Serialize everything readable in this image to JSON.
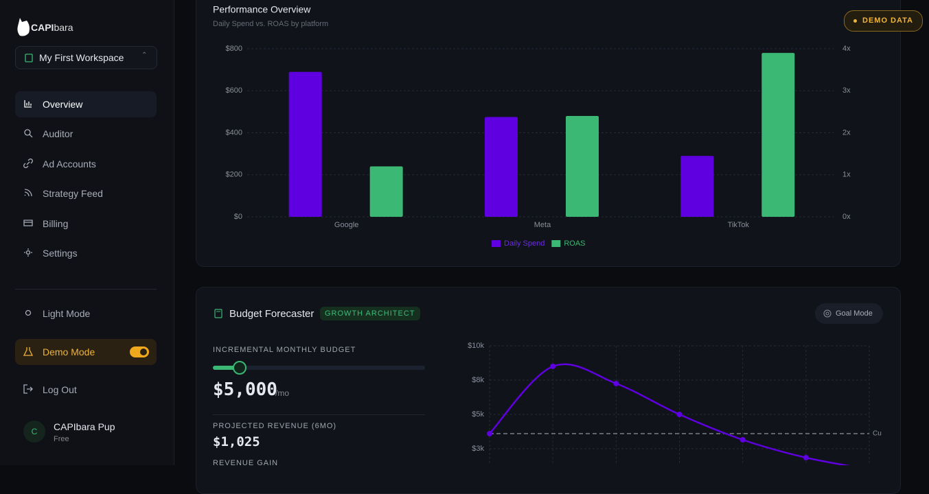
{
  "sidebar": {
    "brand_bold": "CAPI",
    "brand_light": "bara",
    "workspace": "My First Workspace",
    "nav": [
      "Overview",
      "Auditor",
      "Ad Accounts",
      "Strategy Feed",
      "Billing",
      "Settings"
    ],
    "light_mode": "Light Mode",
    "demo_mode": "Demo Mode",
    "log_out": "Log Out",
    "user": {
      "initial": "C",
      "name": "CAPIbara Pup",
      "plan": "Free"
    }
  },
  "demo_badge": "DEMO DATA",
  "forecaster": {
    "title": "Budget Forecaster",
    "badge": "GROWTH ARCHITECT",
    "goal_mode": "Goal Mode",
    "budget_label": "INCREMENTAL MONTHLY BUDGET",
    "budget": "$5,000",
    "budget_unit": "/mo",
    "revenue_label": "PROJECTED REVENUE (6MO)",
    "revenue": "$1,025",
    "gain_label": "REVENUE GAIN"
  },
  "chart_data": [
    {
      "type": "bar",
      "title": "Performance Overview",
      "subtitle": "Daily Spend vs. ROAS by platform",
      "categories": [
        "Google",
        "Meta",
        "TikTok"
      ],
      "series": [
        {
          "name": "Daily Spend",
          "color": "#5f00e0",
          "values": [
            690,
            475,
            290
          ]
        },
        {
          "name": "ROAS",
          "color": "#3bb873",
          "values": [
            1.2,
            2.4,
            3.9
          ],
          "axis": "y2"
        }
      ],
      "ylim": [
        0,
        800
      ],
      "yticks": [
        {
          "value": 0,
          "label": "$0"
        },
        {
          "value": 200,
          "label": "$200"
        },
        {
          "value": 400,
          "label": "$400"
        },
        {
          "value": 600,
          "label": "$600"
        },
        {
          "value": 800,
          "label": "$800"
        }
      ],
      "y2lim": [
        0,
        4
      ],
      "y2ticks": [
        {
          "value": 0,
          "label": "0x"
        },
        {
          "value": 1,
          "label": "1x"
        },
        {
          "value": 2,
          "label": "2x"
        },
        {
          "value": 3,
          "label": "3x"
        },
        {
          "value": 4,
          "label": "4x"
        }
      ],
      "grid": true,
      "legend": "bottom"
    },
    {
      "type": "line",
      "categories": [
        null,
        null,
        null,
        null,
        null,
        null,
        null
      ],
      "series": [
        {
          "name": null,
          "color": "#5f00e0",
          "values": [
            3600,
            8500,
            7250,
            5000,
            3150,
            1850,
            1000
          ]
        }
      ],
      "ylim": [
        0,
        10000
      ],
      "yticks": [
        {
          "value": 2500,
          "label": "$3k"
        },
        {
          "value": 5000,
          "label": "$5k"
        },
        {
          "value": 7500,
          "label": "$8k"
        },
        {
          "value": 10000,
          "label": "$10k"
        }
      ],
      "reference_line": {
        "value": 3600,
        "label": "Cu"
      },
      "grid": true
    }
  ]
}
